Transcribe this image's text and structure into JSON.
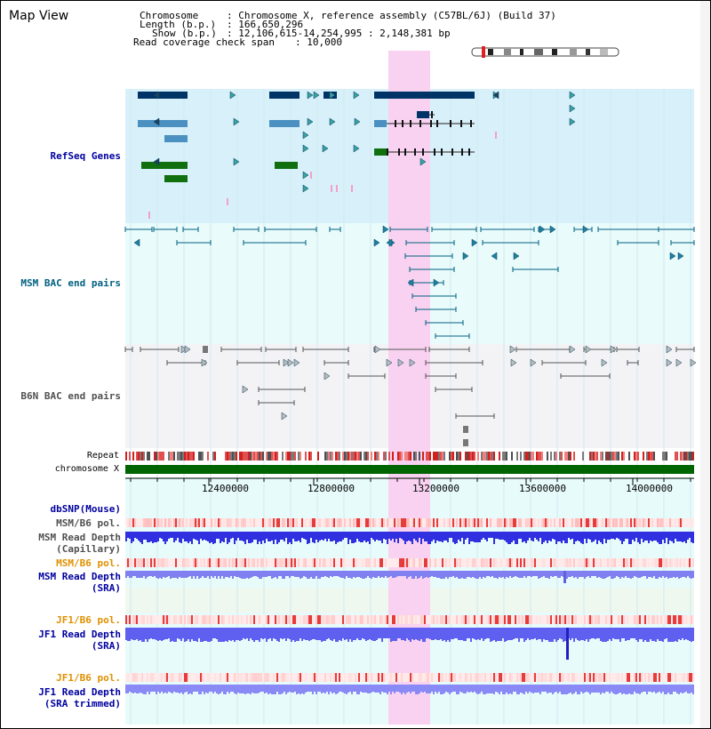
{
  "title": "Map View",
  "header": {
    "chromosome_label": "Chromosome",
    "chromosome_value": ": Chromosome X, reference assembly (C57BL/6J) (Build 37)",
    "length_label": "Length (b.p.)",
    "length_value": ": 166,650,296",
    "show_label": "Show (b.p.)",
    "show_value": ": 12,106,615-14,254,995 : 2,148,381 bp",
    "coverage_label": "Read coverage check span",
    "coverage_value": ": 10,000"
  },
  "tracks": {
    "refseq": "RefSeq Genes",
    "msm_bac": "MSM BAC end pairs",
    "b6n_bac": "B6N BAC end pairs",
    "repeat": "Repeat",
    "chromosome": "chromosome X",
    "dbsnp": "dbSNP(Mouse)",
    "msm_b6_pol_1": "MSM/B6 pol.",
    "msm_depth_cap_1": "MSM Read Depth",
    "msm_depth_cap_2": "(Capillary)",
    "msm_b6_pol_2": "MSM/B6 pol.",
    "msm_depth_sra_1": "MSM Read Depth",
    "msm_depth_sra_2": "(SRA)",
    "jf1_b6_pol_1": "JF1/B6 pol.",
    "jf1_depth_sra_1": "JF1 Read Depth",
    "jf1_depth_sra_2": "(SRA)",
    "jf1_b6_pol_2": "JF1/B6 pol.",
    "jf1_depth_trim_1": "JF1 Read Depth",
    "jf1_depth_trim_2": "(SRA trimmed)"
  },
  "ruler": {
    "ticks": [
      "12400000",
      "12800000",
      "13200000",
      "13600000",
      "14000000"
    ]
  },
  "colors": {
    "refseq_bg": "#d8f0fa",
    "bac_bg": "#e9fbfb",
    "b6n_bg": "#f3f3f6",
    "highlight": "#f8d2f0",
    "msm_label": "#006080",
    "b6n_label": "#505050",
    "blue_label": "#0000a0",
    "orange_label": "#e09000",
    "gene_dark": "#003366",
    "gene_mid": "#4a90c0",
    "gene_green": "#107010",
    "chrom_bar": "#006400"
  }
}
